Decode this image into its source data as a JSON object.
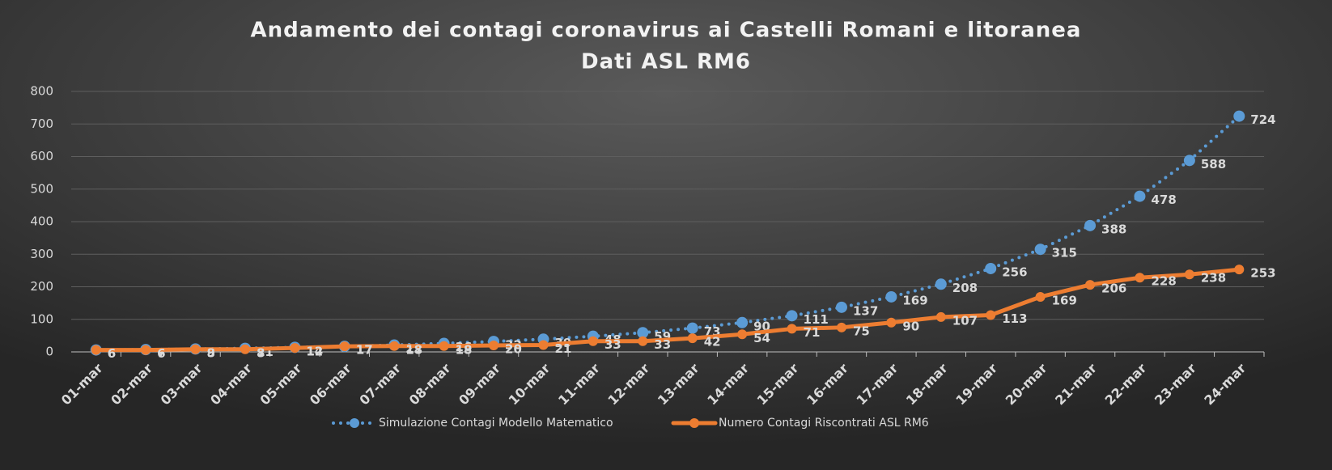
{
  "chart_data": {
    "type": "line",
    "title": "Andamento dei contagi coronavirus ai Castelli Romani e litoranea",
    "subtitle": "Dati ASL RM6",
    "categories": [
      "01-mar",
      "02-mar",
      "03-mar",
      "04-mar",
      "05-mar",
      "06-mar",
      "07-mar",
      "08-mar",
      "09-mar",
      "10-mar",
      "11-mar",
      "12-mar",
      "13-mar",
      "14-mar",
      "15-mar",
      "16-mar",
      "17-mar",
      "18-mar",
      "19-mar",
      "20-mar",
      "21-mar",
      "22-mar",
      "23-mar",
      "24-mar"
    ],
    "series": [
      {
        "name": "Simulazione Contagi Modello Matematico",
        "color": "#5b9bd5",
        "style": "dotted",
        "values": [
          6,
          7,
          9,
          11,
          14,
          17,
          21,
          26,
          32,
          39,
          48,
          59,
          73,
          90,
          111,
          137,
          169,
          208,
          256,
          315,
          388,
          478,
          588,
          724
        ]
      },
      {
        "name": "Numero Contagi Riscontrati ASL RM6",
        "color": "#ed7d31",
        "style": "solid",
        "values": [
          6,
          6,
          8,
          8,
          12,
          17,
          18,
          18,
          20,
          21,
          33,
          33,
          42,
          54,
          71,
          75,
          90,
          107,
          113,
          169,
          206,
          228,
          238,
          253
        ]
      }
    ],
    "ylim": [
      0,
      800
    ],
    "yticks": [
      0,
      100,
      200,
      300,
      400,
      500,
      600,
      700,
      800
    ],
    "grid": true,
    "legend": "bottom"
  }
}
